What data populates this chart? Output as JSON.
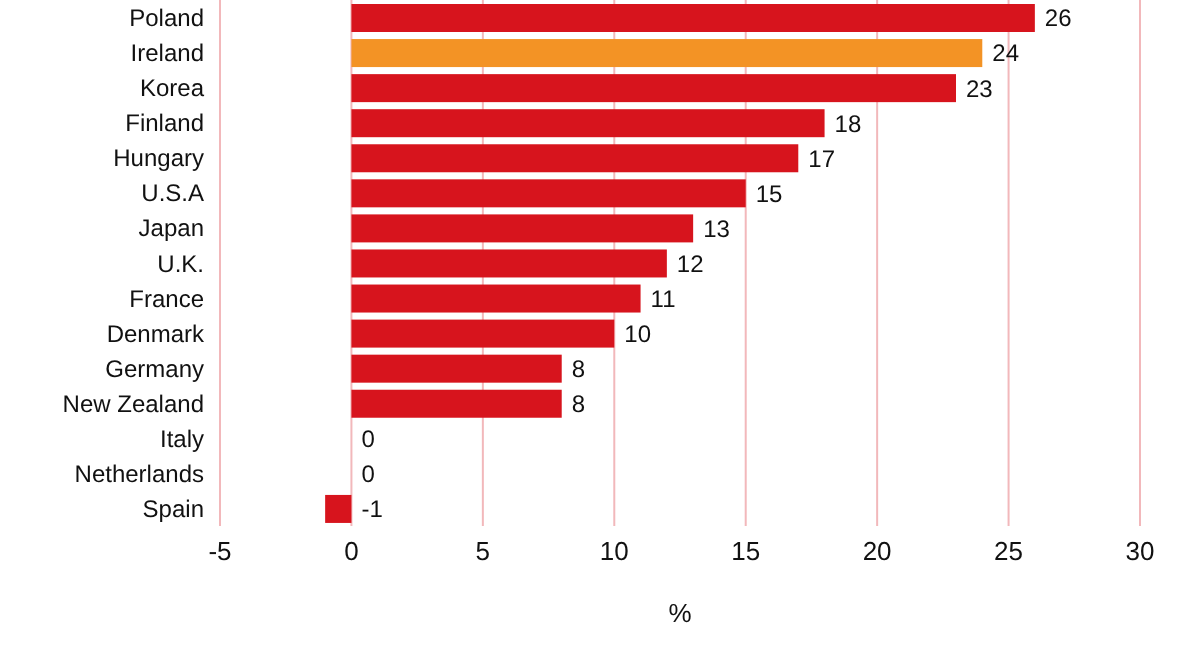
{
  "chart_data": {
    "type": "bar",
    "orientation": "horizontal",
    "categories": [
      "Poland",
      "Ireland",
      "Korea",
      "Finland",
      "Hungary",
      "U.S.A",
      "Japan",
      "U.K.",
      "France",
      "Denmark",
      "Germany",
      "New Zealand",
      "Italy",
      "Netherlands",
      "Spain"
    ],
    "values": [
      26,
      24,
      23,
      18,
      17,
      15,
      13,
      12,
      11,
      10,
      8,
      8,
      0,
      0,
      -1
    ],
    "colors": [
      "#d7141d",
      "#f39325",
      "#d7141d",
      "#d7141d",
      "#d7141d",
      "#d7141d",
      "#d7141d",
      "#d7141d",
      "#d7141d",
      "#d7141d",
      "#d7141d",
      "#d7141d",
      "#d7141d",
      "#d7141d",
      "#d7141d"
    ],
    "xlim": [
      -5,
      30
    ],
    "xticks": [
      -5,
      0,
      5,
      10,
      15,
      20,
      25,
      30
    ],
    "xlabel": "%",
    "grid": "x",
    "data_labels": true
  }
}
